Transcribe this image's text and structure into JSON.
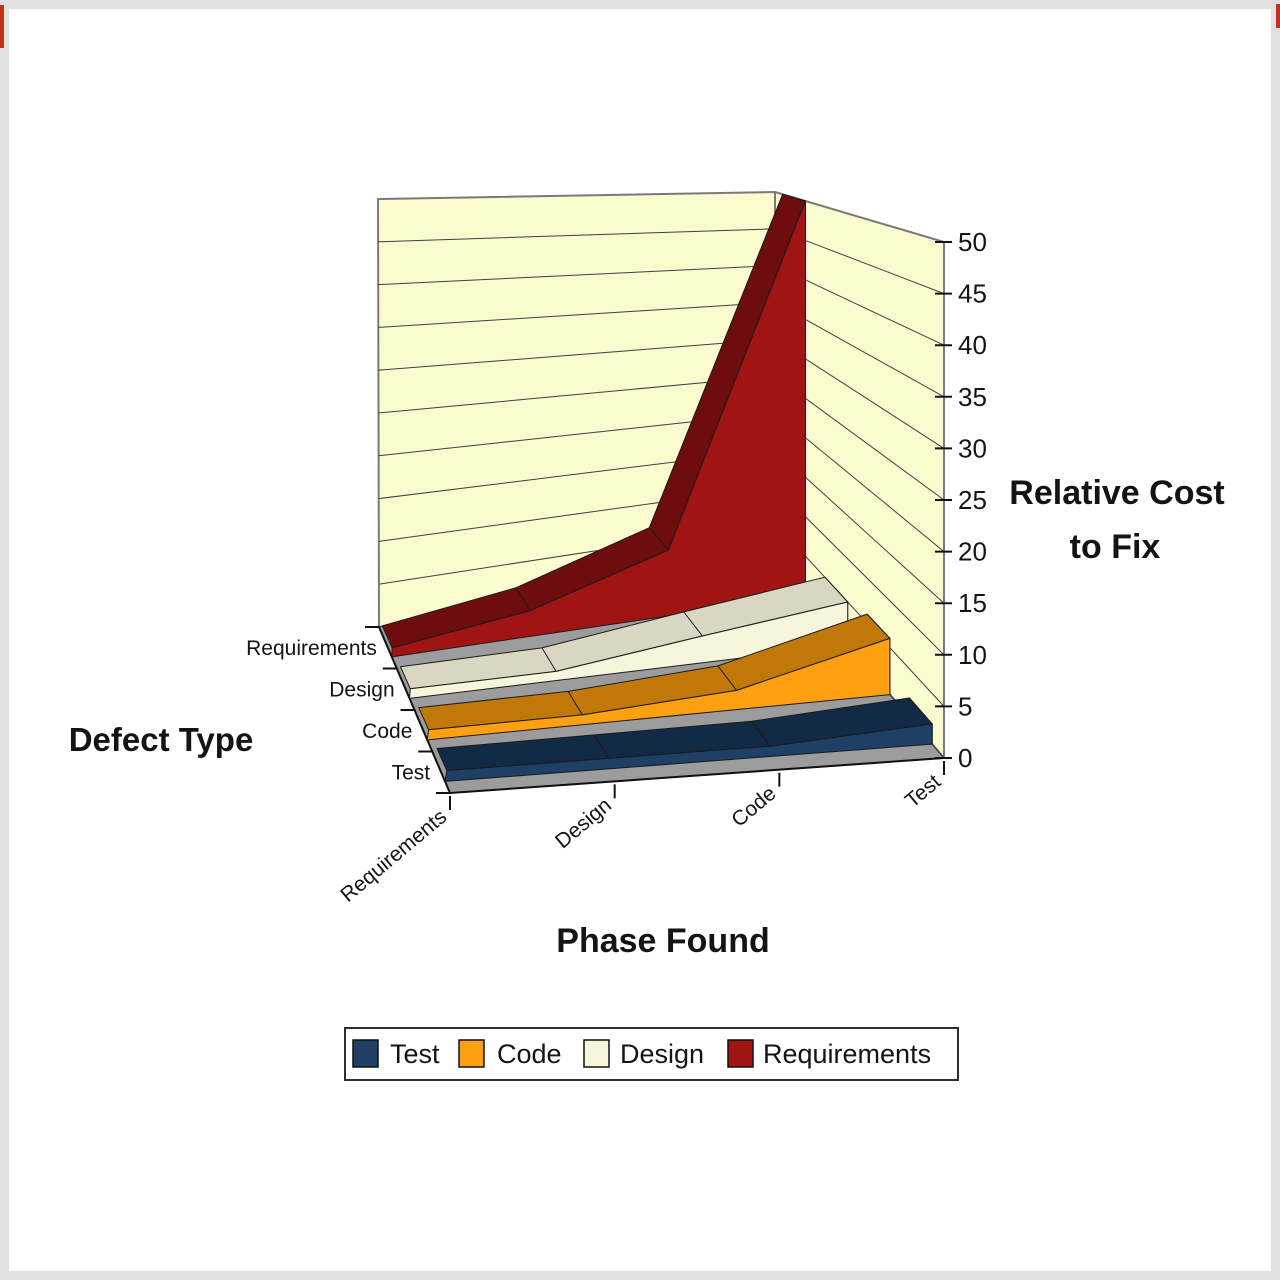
{
  "chart_data": {
    "type": "area",
    "subtype": "3d-area",
    "title": "",
    "value_axis": {
      "title": "Relative Cost to Fix",
      "title_lines": [
        "Relative Cost",
        "to Fix"
      ],
      "min": 0,
      "max": 50,
      "step": 5,
      "tick_labels": [
        "0",
        "5",
        "10",
        "15",
        "20",
        "25",
        "30",
        "35",
        "40",
        "45",
        "50"
      ]
    },
    "x_axis": {
      "title": "Phase Found",
      "categories": [
        "Requirements",
        "Design",
        "Code",
        "Test"
      ]
    },
    "series_axis": {
      "title": "Defect Type",
      "categories": [
        "Requirements",
        "Design",
        "Code",
        "Test"
      ]
    },
    "series": [
      {
        "name": "Requirements",
        "values": [
          1,
          3,
          8,
          50
        ],
        "color": "#A01414",
        "top_color": "#6E0D0D",
        "end_color": "#8A1010"
      },
      {
        "name": "Design",
        "values": [
          1,
          1,
          3,
          5
        ],
        "color": "#F7F5DC",
        "top_color": "#D9D7C2",
        "end_color": "#C8C6AE"
      },
      {
        "name": "Code",
        "values": [
          1,
          1,
          2,
          6
        ],
        "color": "#FFA012",
        "top_color": "#C07806",
        "end_color": "#E08D08"
      },
      {
        "name": "Test",
        "values": [
          1,
          1,
          1,
          2
        ],
        "color": "#1E3F66",
        "top_color": "#122A45",
        "end_color": "#173352"
      }
    ],
    "legend": {
      "position": "bottom",
      "items": [
        {
          "label": "Test",
          "color": "#1E3F66"
        },
        {
          "label": "Code",
          "color": "#FFA012"
        },
        {
          "label": "Design",
          "color": "#F7F5DC"
        },
        {
          "label": "Requirements",
          "color": "#A01414"
        }
      ]
    },
    "walls": {
      "color": "#FCFACF",
      "grid_color": "#3F3F3F",
      "edge_color": "#7a7a7a"
    },
    "floor": {
      "color": "#9C9C9C",
      "edge_color": "#444444"
    },
    "axis_line_color": "#111111"
  },
  "artifacts": {
    "edge_marks_color": "#C5311C"
  }
}
